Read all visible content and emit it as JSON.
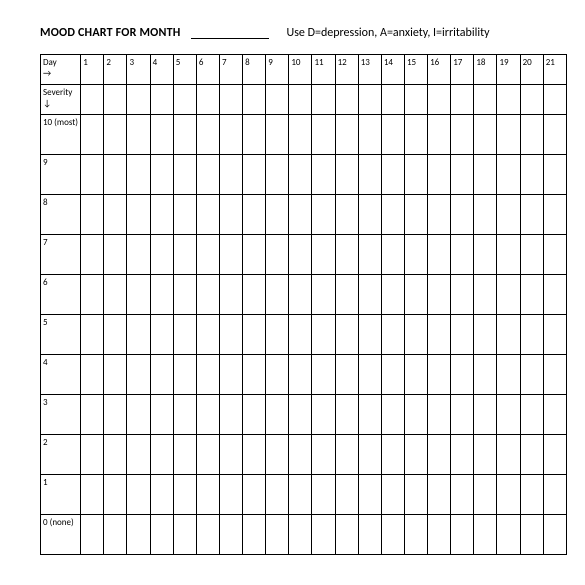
{
  "header": {
    "title": "MOOD CHART FOR MONTH",
    "legend": "Use D=depression, A=anxiety, I=irritability"
  },
  "table": {
    "day_label": "Day",
    "day_arrow": "→",
    "severity_label": "Severity",
    "severity_arrow": "↓",
    "days": [
      "1",
      "2",
      "3",
      "4",
      "5",
      "6",
      "7",
      "8",
      "9",
      "10",
      "11",
      "12",
      "13",
      "14",
      "15",
      "16",
      "17",
      "18",
      "19",
      "20",
      "21"
    ],
    "severity_rows": [
      "10 (most)",
      "9",
      "8",
      "7",
      "6",
      "5",
      "4",
      "3",
      "2",
      "1",
      "0 (none)"
    ],
    "border_color": "#000000",
    "background_color": "#ffffff",
    "font_size_header": 12,
    "font_size_cells": 9
  }
}
